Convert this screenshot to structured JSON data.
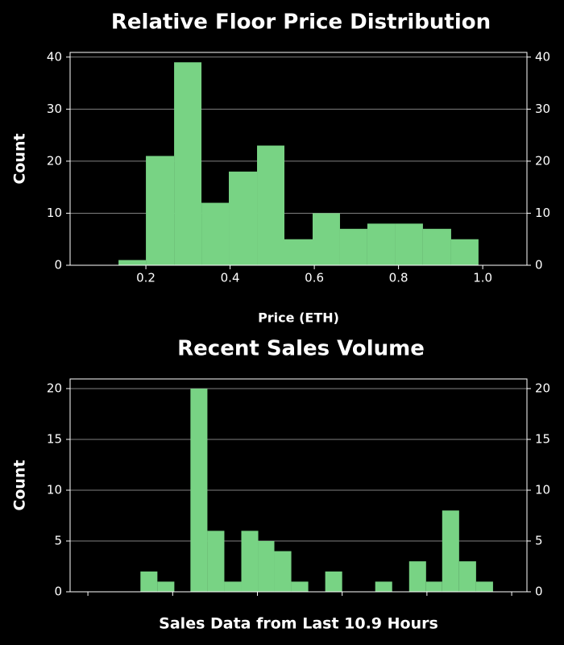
{
  "chart_data": [
    {
      "type": "histogram",
      "title": "Relative Floor Price Distribution",
      "x_label": "Price (ETH)",
      "y_label": "Count",
      "bins": [
        0.135,
        0.2,
        0.267,
        0.332,
        0.397,
        0.464,
        0.529,
        0.596,
        0.661,
        0.726,
        0.793,
        0.858,
        0.925,
        0.99
      ],
      "values": [
        1,
        21,
        39,
        12,
        18,
        23,
        5,
        10,
        7,
        8,
        8,
        7,
        5
      ],
      "color": "#78d384",
      "xlim": [
        0.02,
        1.105
      ],
      "ylim": [
        0,
        40.9
      ],
      "xticks": [
        0.2,
        0.4,
        0.6,
        0.8,
        {
          "value": 1.0,
          "label": "1.0"
        }
      ],
      "yticks": [
        0,
        10,
        20,
        30,
        40
      ],
      "grid": true
    },
    {
      "type": "histogram",
      "title": "Recent Sales Volume",
      "x_label": "Sales Data from Last 10.9 Hours",
      "y_label": "Count",
      "bins": [
        0.62,
        0.82,
        1.02,
        1.21,
        1.41,
        1.61,
        1.81,
        2.01,
        2.2,
        2.4,
        2.6,
        2.8,
        3.0,
        3.19,
        3.39,
        3.59,
        3.79,
        3.99,
        4.18,
        4.38,
        4.58,
        4.78
      ],
      "values": [
        2,
        1,
        0,
        20,
        6,
        1,
        6,
        5,
        4,
        1,
        0,
        2,
        0,
        0,
        1,
        0,
        3,
        1,
        8,
        3,
        1
      ],
      "color": "#78d384",
      "xlim": [
        -0.21,
        5.18
      ],
      "ylim": [
        0,
        20.95
      ],
      "xticks": [
        {
          "value": 0,
          "label": null
        },
        {
          "value": 1,
          "label": null
        },
        {
          "value": 2,
          "label": null
        },
        {
          "value": 3,
          "label": null
        },
        {
          "value": 4,
          "label": null
        },
        {
          "value": 5,
          "label": null
        }
      ],
      "yticks": [
        0,
        5,
        10,
        15,
        20
      ],
      "grid": true
    }
  ]
}
